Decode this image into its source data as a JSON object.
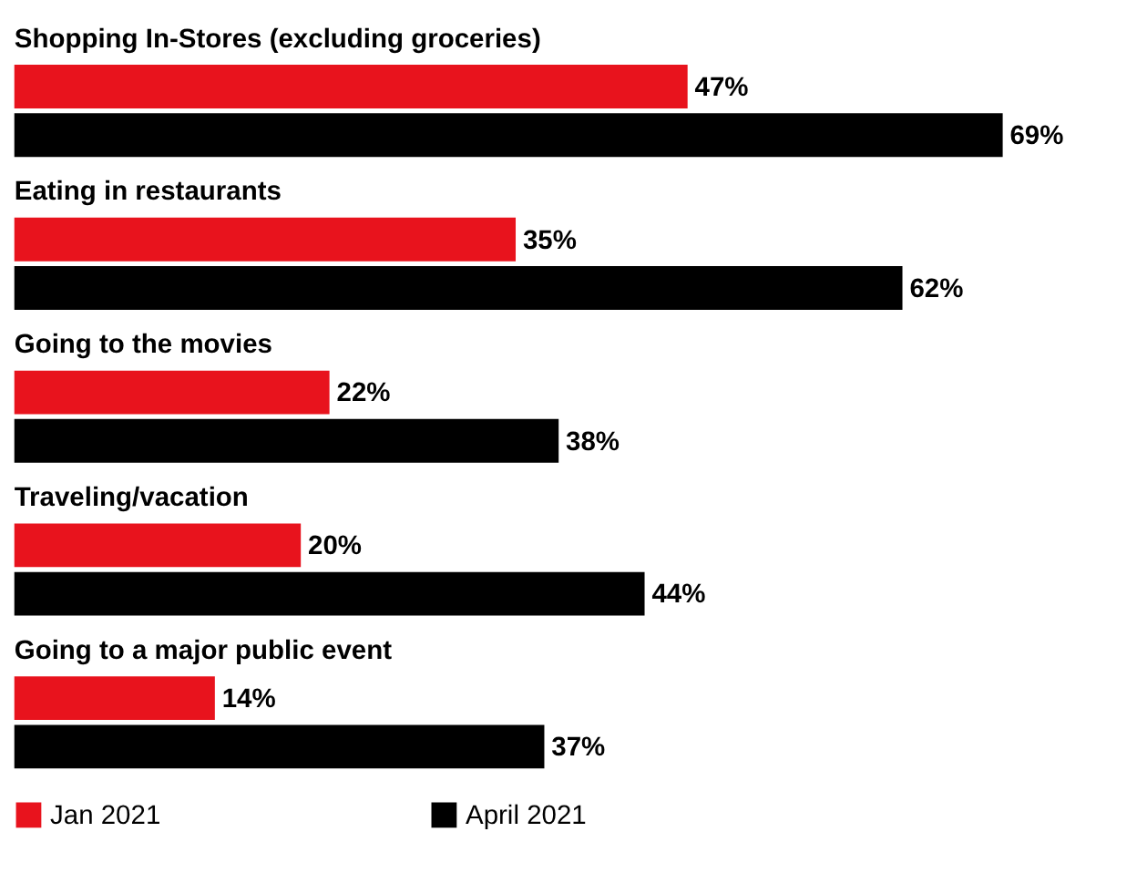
{
  "chart_data": {
    "type": "bar",
    "orientation": "horizontal",
    "categories": [
      "Shopping In-Stores (excluding groceries)",
      "Eating in restaurants",
      "Going to the movies",
      "Traveling/vacation",
      "Going to a major public event"
    ],
    "series": [
      {
        "name": "Jan 2021",
        "color": "#e8131d",
        "values": [
          47,
          35,
          22,
          20,
          14
        ],
        "value_labels": [
          "47%",
          "35%",
          "22%",
          "20%",
          "14%"
        ]
      },
      {
        "name": "April 2021",
        "color": "#000000",
        "values": [
          69,
          62,
          38,
          44,
          37
        ],
        "value_labels": [
          "69%",
          "62%",
          "38%",
          "44%",
          "37%"
        ]
      }
    ],
    "legend": "bottom",
    "grid": false
  }
}
